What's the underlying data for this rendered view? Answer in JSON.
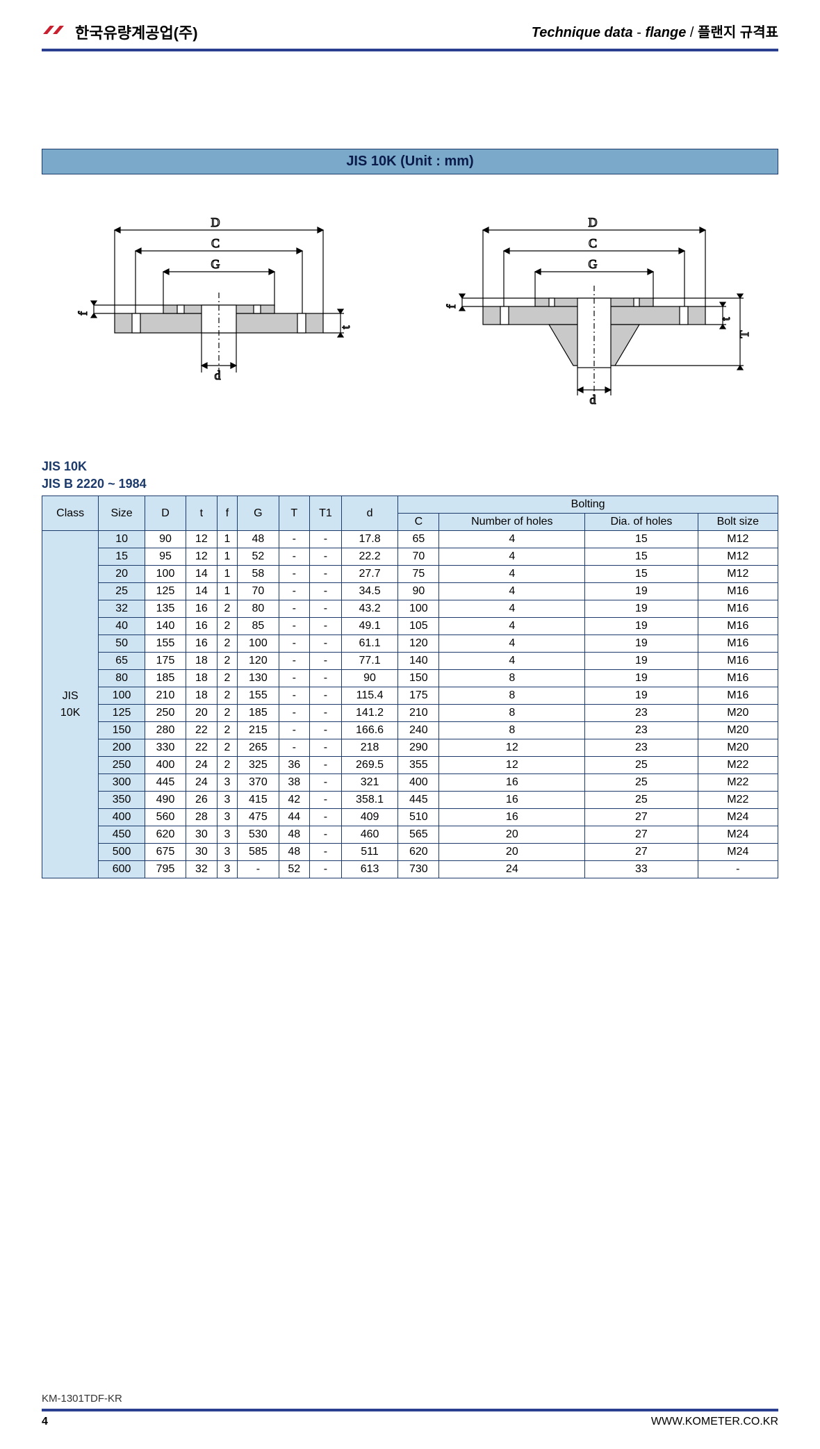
{
  "header": {
    "company": "한국유량계공업(주)",
    "right_italic": "Technique data",
    "right_dash": " - ",
    "right_bold": "flange",
    "right_slash": " / ",
    "right_korean": "플랜지 규격표"
  },
  "section_title": "JIS 10K (Unit : mm)",
  "table_header": {
    "line1": "JIS 10K",
    "line2": "JIS B 2220 ~ 1984"
  },
  "columns": {
    "class": "Class",
    "size": "Size",
    "D": "D",
    "t": "t",
    "f": "f",
    "G": "G",
    "T": "T",
    "T1": "T1",
    "d": "d",
    "bolting": "Bolting",
    "C": "C",
    "num_holes": "Number of holes",
    "dia_holes": "Dia. of holes",
    "bolt_size": "Bolt size"
  },
  "class_label_1": "JIS",
  "class_label_2": "10K",
  "rows": [
    {
      "size": "10",
      "D": "90",
      "t": "12",
      "f": "1",
      "G": "48",
      "T": "-",
      "T1": "-",
      "d": "17.8",
      "C": "65",
      "nh": "4",
      "dh": "15",
      "bs": "M12"
    },
    {
      "size": "15",
      "D": "95",
      "t": "12",
      "f": "1",
      "G": "52",
      "T": "-",
      "T1": "-",
      "d": "22.2",
      "C": "70",
      "nh": "4",
      "dh": "15",
      "bs": "M12"
    },
    {
      "size": "20",
      "D": "100",
      "t": "14",
      "f": "1",
      "G": "58",
      "T": "-",
      "T1": "-",
      "d": "27.7",
      "C": "75",
      "nh": "4",
      "dh": "15",
      "bs": "M12"
    },
    {
      "size": "25",
      "D": "125",
      "t": "14",
      "f": "1",
      "G": "70",
      "T": "-",
      "T1": "-",
      "d": "34.5",
      "C": "90",
      "nh": "4",
      "dh": "19",
      "bs": "M16"
    },
    {
      "size": "32",
      "D": "135",
      "t": "16",
      "f": "2",
      "G": "80",
      "T": "-",
      "T1": "-",
      "d": "43.2",
      "C": "100",
      "nh": "4",
      "dh": "19",
      "bs": "M16"
    },
    {
      "size": "40",
      "D": "140",
      "t": "16",
      "f": "2",
      "G": "85",
      "T": "-",
      "T1": "-",
      "d": "49.1",
      "C": "105",
      "nh": "4",
      "dh": "19",
      "bs": "M16"
    },
    {
      "size": "50",
      "D": "155",
      "t": "16",
      "f": "2",
      "G": "100",
      "T": "-",
      "T1": "-",
      "d": "61.1",
      "C": "120",
      "nh": "4",
      "dh": "19",
      "bs": "M16"
    },
    {
      "size": "65",
      "D": "175",
      "t": "18",
      "f": "2",
      "G": "120",
      "T": "-",
      "T1": "-",
      "d": "77.1",
      "C": "140",
      "nh": "4",
      "dh": "19",
      "bs": "M16"
    },
    {
      "size": "80",
      "D": "185",
      "t": "18",
      "f": "2",
      "G": "130",
      "T": "-",
      "T1": "-",
      "d": "90",
      "C": "150",
      "nh": "8",
      "dh": "19",
      "bs": "M16"
    },
    {
      "size": "100",
      "D": "210",
      "t": "18",
      "f": "2",
      "G": "155",
      "T": "-",
      "T1": "-",
      "d": "115.4",
      "C": "175",
      "nh": "8",
      "dh": "19",
      "bs": "M16"
    },
    {
      "size": "125",
      "D": "250",
      "t": "20",
      "f": "2",
      "G": "185",
      "T": "-",
      "T1": "-",
      "d": "141.2",
      "C": "210",
      "nh": "8",
      "dh": "23",
      "bs": "M20"
    },
    {
      "size": "150",
      "D": "280",
      "t": "22",
      "f": "2",
      "G": "215",
      "T": "-",
      "T1": "-",
      "d": "166.6",
      "C": "240",
      "nh": "8",
      "dh": "23",
      "bs": "M20"
    },
    {
      "size": "200",
      "D": "330",
      "t": "22",
      "f": "2",
      "G": "265",
      "T": "-",
      "T1": "-",
      "d": "218",
      "C": "290",
      "nh": "12",
      "dh": "23",
      "bs": "M20"
    },
    {
      "size": "250",
      "D": "400",
      "t": "24",
      "f": "2",
      "G": "325",
      "T": "36",
      "T1": "-",
      "d": "269.5",
      "C": "355",
      "nh": "12",
      "dh": "25",
      "bs": "M22"
    },
    {
      "size": "300",
      "D": "445",
      "t": "24",
      "f": "3",
      "G": "370",
      "T": "38",
      "T1": "-",
      "d": "321",
      "C": "400",
      "nh": "16",
      "dh": "25",
      "bs": "M22"
    },
    {
      "size": "350",
      "D": "490",
      "t": "26",
      "f": "3",
      "G": "415",
      "T": "42",
      "T1": "-",
      "d": "358.1",
      "C": "445",
      "nh": "16",
      "dh": "25",
      "bs": "M22"
    },
    {
      "size": "400",
      "D": "560",
      "t": "28",
      "f": "3",
      "G": "475",
      "T": "44",
      "T1": "-",
      "d": "409",
      "C": "510",
      "nh": "16",
      "dh": "27",
      "bs": "M24"
    },
    {
      "size": "450",
      "D": "620",
      "t": "30",
      "f": "3",
      "G": "530",
      "T": "48",
      "T1": "-",
      "d": "460",
      "C": "565",
      "nh": "20",
      "dh": "27",
      "bs": "M24"
    },
    {
      "size": "500",
      "D": "675",
      "t": "30",
      "f": "3",
      "G": "585",
      "T": "48",
      "T1": "-",
      "d": "511",
      "C": "620",
      "nh": "20",
      "dh": "27",
      "bs": "M24"
    },
    {
      "size": "600",
      "D": "795",
      "t": "32",
      "f": "3",
      "G": "-",
      "T": "52",
      "T1": "-",
      "d": "613",
      "C": "730",
      "nh": "24",
      "dh": "33",
      "bs": "-"
    }
  ],
  "diagram_labels": {
    "D": "D",
    "C": "C",
    "G": "G",
    "d": "d",
    "f": "f",
    "t": "t",
    "T": "T"
  },
  "colors": {
    "flange_fill": "#c9c9c9",
    "header_border": "#2a3f8f",
    "table_border": "#1b3a6b",
    "table_header_bg": "#cfe4f2"
  },
  "footer": {
    "doc_code": "KM-1301TDF-KR",
    "page": "4",
    "url": "WWW.KOMETER.CO.KR"
  }
}
